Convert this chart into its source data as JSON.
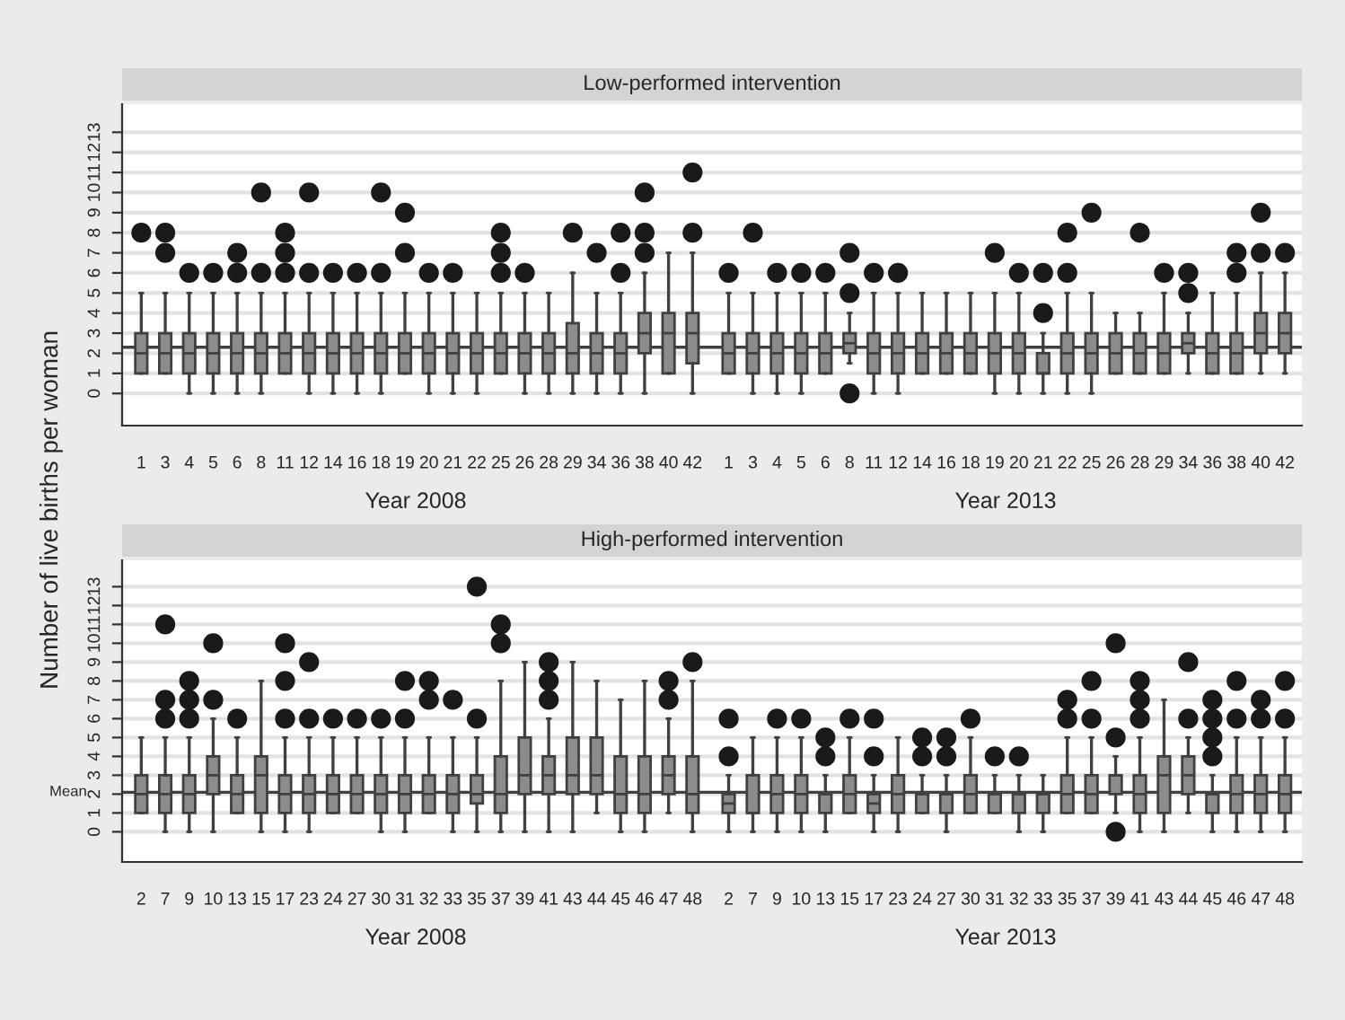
{
  "chart_data": [
    {
      "type": "box",
      "title": "Low-performed intervention",
      "ylabel": "Number of live births per woman",
      "xlabel": "Year 2008",
      "color": "#8c8c8c",
      "grid": "y",
      "ylim": [
        -1.6,
        14.4
      ],
      "yticks": [
        0,
        1,
        2,
        3,
        4,
        5,
        6,
        7,
        8,
        9,
        10,
        11,
        12,
        13
      ],
      "categories": [
        "1",
        "3",
        "4",
        "5",
        "6",
        "8",
        "11",
        "12",
        "14",
        "16",
        "18",
        "19",
        "20",
        "21",
        "22",
        "25",
        "26",
        "28",
        "29",
        "34",
        "36",
        "38",
        "40",
        "42"
      ],
      "ref_lines": [
        {
          "axis": "y",
          "value": 2.3,
          "color": "#404040"
        }
      ],
      "boxes": [
        {
          "low": 1,
          "q1": 1,
          "median": 2,
          "q3": 3,
          "high": 5,
          "outliers": [
            8
          ]
        },
        {
          "low": 1,
          "q1": 1,
          "median": 2,
          "q3": 3,
          "high": 5,
          "outliers": [
            7,
            8
          ]
        },
        {
          "low": 0,
          "q1": 1,
          "median": 2,
          "q3": 3,
          "high": 5,
          "outliers": [
            6
          ]
        },
        {
          "low": 0,
          "q1": 1,
          "median": 2,
          "q3": 3,
          "high": 5,
          "outliers": [
            6
          ]
        },
        {
          "low": 0,
          "q1": 1,
          "median": 2,
          "q3": 3,
          "high": 5,
          "outliers": [
            6,
            7
          ]
        },
        {
          "low": 0,
          "q1": 1,
          "median": 2,
          "q3": 3,
          "high": 5,
          "outliers": [
            6,
            10
          ]
        },
        {
          "low": 1,
          "q1": 1,
          "median": 2,
          "q3": 3,
          "high": 5,
          "outliers": [
            6,
            7,
            8
          ]
        },
        {
          "low": 0,
          "q1": 1,
          "median": 2,
          "q3": 3,
          "high": 5,
          "outliers": [
            6,
            10
          ]
        },
        {
          "low": 0,
          "q1": 1,
          "median": 2,
          "q3": 3,
          "high": 5,
          "outliers": [
            6
          ]
        },
        {
          "low": 0,
          "q1": 1,
          "median": 2,
          "q3": 3,
          "high": 5,
          "outliers": [
            6
          ]
        },
        {
          "low": 0,
          "q1": 1,
          "median": 2,
          "q3": 3,
          "high": 5,
          "outliers": [
            6,
            10
          ]
        },
        {
          "low": 1,
          "q1": 1,
          "median": 2,
          "q3": 3,
          "high": 5,
          "outliers": [
            7,
            9
          ]
        },
        {
          "low": 0,
          "q1": 1,
          "median": 2,
          "q3": 3,
          "high": 5,
          "outliers": [
            6
          ]
        },
        {
          "low": 0,
          "q1": 1,
          "median": 2,
          "q3": 3,
          "high": 5,
          "outliers": [
            6
          ]
        },
        {
          "low": 0,
          "q1": 1,
          "median": 2,
          "q3": 3,
          "high": 5
        },
        {
          "low": 1,
          "q1": 1,
          "median": 2,
          "q3": 3,
          "high": 5,
          "outliers": [
            6,
            7,
            8
          ]
        },
        {
          "low": 0,
          "q1": 1,
          "median": 2,
          "q3": 3,
          "high": 5,
          "outliers": [
            6
          ]
        },
        {
          "low": 0,
          "q1": 1,
          "median": 2,
          "q3": 3,
          "high": 5
        },
        {
          "low": 0,
          "q1": 1,
          "median": 2,
          "q3": 3.5,
          "high": 6,
          "outliers": [
            8
          ]
        },
        {
          "low": 0,
          "q1": 1,
          "median": 2,
          "q3": 3,
          "high": 5,
          "outliers": [
            7
          ]
        },
        {
          "low": 0,
          "q1": 1,
          "median": 2,
          "q3": 3,
          "high": 5,
          "outliers": [
            6,
            8
          ]
        },
        {
          "low": 0,
          "q1": 2,
          "median": 3,
          "q3": 4,
          "high": 6,
          "outliers": [
            7,
            8,
            10
          ]
        },
        {
          "low": 1,
          "q1": 1,
          "median": 3,
          "q3": 4,
          "high": 7
        },
        {
          "low": 0,
          "q1": 1.5,
          "median": 3,
          "q3": 4,
          "high": 7,
          "outliers": [
            8,
            11
          ]
        }
      ]
    },
    {
      "type": "box",
      "xlabel": "Year 2013",
      "color": "#8c8c8c",
      "grid": "y",
      "tick_labels": "x",
      "ylim": [
        -1.6,
        14.4
      ],
      "yticks": [
        0,
        1,
        2,
        3,
        4,
        5,
        6,
        7,
        8,
        9,
        10,
        11,
        12,
        13
      ],
      "categories": [
        "1",
        "3",
        "4",
        "5",
        "6",
        "8",
        "11",
        "12",
        "14",
        "16",
        "18",
        "19",
        "20",
        "21",
        "22",
        "25",
        "26",
        "28",
        "29",
        "34",
        "36",
        "38",
        "40",
        "42"
      ],
      "ref_lines": [
        {
          "axis": "y",
          "value": 2.3,
          "color": "#404040"
        }
      ],
      "boxes": [
        {
          "low": 1,
          "q1": 1,
          "median": 2,
          "q3": 3,
          "high": 5,
          "outliers": [
            6
          ]
        },
        {
          "low": 0,
          "q1": 1,
          "median": 2,
          "q3": 3,
          "high": 5,
          "outliers": [
            8
          ]
        },
        {
          "low": 0,
          "q1": 1,
          "median": 2,
          "q3": 3,
          "high": 5,
          "outliers": [
            6
          ]
        },
        {
          "low": 0,
          "q1": 1,
          "median": 2,
          "q3": 3,
          "high": 5,
          "outliers": [
            6
          ]
        },
        {
          "low": 1,
          "q1": 1,
          "median": 2,
          "q3": 3,
          "high": 5,
          "outliers": [
            6
          ]
        },
        {
          "low": 1.5,
          "q1": 2,
          "median": 2.5,
          "q3": 3,
          "high": 4,
          "outliers": [
            0,
            5,
            7
          ]
        },
        {
          "low": 0,
          "q1": 1,
          "median": 2,
          "q3": 3,
          "high": 5,
          "outliers": [
            6
          ]
        },
        {
          "low": 0,
          "q1": 1,
          "median": 2,
          "q3": 3,
          "high": 5,
          "outliers": [
            6
          ]
        },
        {
          "low": 1,
          "q1": 1,
          "median": 2,
          "q3": 3,
          "high": 5
        },
        {
          "low": 1,
          "q1": 1,
          "median": 2,
          "q3": 3,
          "high": 5
        },
        {
          "low": 1,
          "q1": 1,
          "median": 2,
          "q3": 3,
          "high": 5
        },
        {
          "low": 0,
          "q1": 1,
          "median": 2,
          "q3": 3,
          "high": 5,
          "outliers": [
            7
          ]
        },
        {
          "low": 0,
          "q1": 1,
          "median": 2,
          "q3": 3,
          "high": 5,
          "outliers": [
            6
          ]
        },
        {
          "low": 0,
          "q1": 1,
          "median": 1,
          "q3": 2,
          "high": 3,
          "outliers": [
            4,
            6
          ]
        },
        {
          "low": 0,
          "q1": 1,
          "median": 2,
          "q3": 3,
          "high": 5,
          "outliers": [
            6,
            8
          ]
        },
        {
          "low": 0,
          "q1": 1,
          "median": 2,
          "q3": 3,
          "high": 5,
          "outliers": [
            9
          ]
        },
        {
          "low": 1,
          "q1": 1,
          "median": 2,
          "q3": 3,
          "high": 4
        },
        {
          "low": 1,
          "q1": 1,
          "median": 2,
          "q3": 3,
          "high": 4,
          "outliers": [
            8
          ]
        },
        {
          "low": 1,
          "q1": 1,
          "median": 2,
          "q3": 3,
          "high": 5,
          "outliers": [
            6
          ]
        },
        {
          "low": 1,
          "q1": 2,
          "median": 2.5,
          "q3": 3,
          "high": 4,
          "outliers": [
            5,
            6
          ]
        },
        {
          "low": 1,
          "q1": 1,
          "median": 2,
          "q3": 3,
          "high": 5
        },
        {
          "low": 1,
          "q1": 1,
          "median": 2,
          "q3": 3,
          "high": 5,
          "outliers": [
            6,
            7
          ]
        },
        {
          "low": 1,
          "q1": 2,
          "median": 3,
          "q3": 4,
          "high": 6,
          "outliers": [
            7,
            9
          ]
        },
        {
          "low": 1,
          "q1": 2,
          "median": 3,
          "q3": 4,
          "high": 6,
          "outliers": [
            7
          ]
        }
      ]
    },
    {
      "type": "box",
      "title": "High-performed intervention",
      "xlabel": "Year 2008",
      "color": "#8c8c8c",
      "grid": "y",
      "ylim": [
        -1.6,
        14.4
      ],
      "yticks": [
        0,
        1,
        2,
        3,
        4,
        5,
        6,
        7,
        8,
        9,
        10,
        11,
        12,
        13
      ],
      "categories": [
        "2",
        "7",
        "9",
        "10",
        "13",
        "15",
        "17",
        "23",
        "24",
        "27",
        "30",
        "31",
        "32",
        "33",
        "35",
        "37",
        "39",
        "41",
        "43",
        "44",
        "45",
        "46",
        "47",
        "48"
      ],
      "ref_lines": [
        {
          "axis": "y",
          "value": 2.1,
          "label": "Mean",
          "color": "#404040"
        }
      ],
      "boxes": [
        {
          "low": 1,
          "q1": 1,
          "median": 2,
          "q3": 3,
          "high": 5
        },
        {
          "low": 0,
          "q1": 1,
          "median": 2,
          "q3": 3,
          "high": 5,
          "outliers": [
            6,
            7,
            11
          ]
        },
        {
          "low": 0,
          "q1": 1,
          "median": 2,
          "q3": 3,
          "high": 5,
          "outliers": [
            6,
            7,
            8
          ]
        },
        {
          "low": 0,
          "q1": 2,
          "median": 3,
          "q3": 4,
          "high": 6,
          "outliers": [
            7,
            10
          ]
        },
        {
          "low": 1,
          "q1": 1,
          "median": 2,
          "q3": 3,
          "high": 5,
          "outliers": [
            6
          ]
        },
        {
          "low": 0,
          "q1": 1,
          "median": 3,
          "q3": 4,
          "high": 8
        },
        {
          "low": 0,
          "q1": 1,
          "median": 2,
          "q3": 3,
          "high": 5,
          "outliers": [
            6,
            8,
            10
          ]
        },
        {
          "low": 0,
          "q1": 1,
          "median": 2,
          "q3": 3,
          "high": 5,
          "outliers": [
            6,
            9
          ]
        },
        {
          "low": 1,
          "q1": 1,
          "median": 2,
          "q3": 3,
          "high": 5,
          "outliers": [
            6
          ]
        },
        {
          "low": 1,
          "q1": 1,
          "median": 2,
          "q3": 3,
          "high": 5,
          "outliers": [
            6
          ]
        },
        {
          "low": 0,
          "q1": 1,
          "median": 2,
          "q3": 3,
          "high": 5,
          "outliers": [
            6
          ]
        },
        {
          "low": 0,
          "q1": 1,
          "median": 2,
          "q3": 3,
          "high": 5,
          "outliers": [
            6,
            8
          ]
        },
        {
          "low": 1,
          "q1": 1,
          "median": 2,
          "q3": 3,
          "high": 5,
          "outliers": [
            7,
            8
          ]
        },
        {
          "low": 0,
          "q1": 1,
          "median": 2,
          "q3": 3,
          "high": 5,
          "outliers": [
            7
          ]
        },
        {
          "low": 0,
          "q1": 1.5,
          "median": 2,
          "q3": 3,
          "high": 5,
          "outliers": [
            6,
            13
          ]
        },
        {
          "low": 0,
          "q1": 1,
          "median": 2,
          "q3": 4,
          "high": 8,
          "outliers": [
            10,
            11
          ]
        },
        {
          "low": 0,
          "q1": 2,
          "median": 3,
          "q3": 5,
          "high": 9
        },
        {
          "low": 0,
          "q1": 2,
          "median": 3,
          "q3": 4,
          "high": 6,
          "outliers": [
            7,
            8,
            9
          ]
        },
        {
          "low": 0,
          "q1": 2,
          "median": 3,
          "q3": 5,
          "high": 9
        },
        {
          "low": 1,
          "q1": 2,
          "median": 3,
          "q3": 5,
          "high": 8
        },
        {
          "low": 0,
          "q1": 1,
          "median": 2,
          "q3": 4,
          "high": 7
        },
        {
          "low": 0,
          "q1": 1,
          "median": 2,
          "q3": 4,
          "high": 8
        },
        {
          "low": 1,
          "q1": 2,
          "median": 3,
          "q3": 4,
          "high": 6,
          "outliers": [
            7,
            8
          ]
        },
        {
          "low": 0,
          "q1": 1,
          "median": 2,
          "q3": 4,
          "high": 8,
          "outliers": [
            9
          ]
        }
      ]
    },
    {
      "type": "box",
      "xlabel": "Year 2013",
      "color": "#8c8c8c",
      "grid": "y",
      "tick_labels": "x",
      "ylim": [
        -1.6,
        14.4
      ],
      "yticks": [
        0,
        1,
        2,
        3,
        4,
        5,
        6,
        7,
        8,
        9,
        10,
        11,
        12,
        13
      ],
      "categories": [
        "2",
        "7",
        "9",
        "10",
        "13",
        "15",
        "17",
        "23",
        "24",
        "27",
        "30",
        "31",
        "32",
        "33",
        "35",
        "37",
        "39",
        "41",
        "43",
        "44",
        "45",
        "46",
        "47",
        "48"
      ],
      "ref_lines": [
        {
          "axis": "y",
          "value": 2.1,
          "color": "#404040"
        }
      ],
      "boxes": [
        {
          "low": 0,
          "q1": 1,
          "median": 1.5,
          "q3": 2,
          "high": 3,
          "outliers": [
            4,
            6
          ]
        },
        {
          "low": 0,
          "q1": 1,
          "median": 1,
          "q3": 3,
          "high": 5
        },
        {
          "low": 0,
          "q1": 1,
          "median": 2,
          "q3": 3,
          "high": 5,
          "outliers": [
            6
          ]
        },
        {
          "low": 0,
          "q1": 1,
          "median": 2,
          "q3": 3,
          "high": 5,
          "outliers": [
            6
          ]
        },
        {
          "low": 0,
          "q1": 1,
          "median": 2,
          "q3": 2,
          "high": 3,
          "outliers": [
            4,
            5
          ]
        },
        {
          "low": 1,
          "q1": 1,
          "median": 2,
          "q3": 3,
          "high": 5,
          "outliers": [
            6
          ]
        },
        {
          "low": 0,
          "q1": 1,
          "median": 1.5,
          "q3": 2,
          "high": 3,
          "outliers": [
            4,
            6
          ]
        },
        {
          "low": 0,
          "q1": 1,
          "median": 2,
          "q3": 3,
          "high": 5
        },
        {
          "low": 1,
          "q1": 1,
          "median": 2,
          "q3": 2,
          "high": 3,
          "outliers": [
            4,
            5
          ]
        },
        {
          "low": 0,
          "q1": 1,
          "median": 2,
          "q3": 2,
          "high": 3,
          "outliers": [
            4,
            5
          ]
        },
        {
          "low": 1,
          "q1": 1,
          "median": 2,
          "q3": 3,
          "high": 5,
          "outliers": [
            6
          ]
        },
        {
          "low": 1,
          "q1": 1,
          "median": 2,
          "q3": 2,
          "high": 3,
          "outliers": [
            4
          ]
        },
        {
          "low": 0,
          "q1": 1,
          "median": 2,
          "q3": 2,
          "high": 3,
          "outliers": [
            4
          ]
        },
        {
          "low": 0,
          "q1": 1,
          "median": 2,
          "q3": 2,
          "high": 3
        },
        {
          "low": 1,
          "q1": 1,
          "median": 2,
          "q3": 3,
          "high": 5,
          "outliers": [
            6,
            7
          ]
        },
        {
          "low": 1,
          "q1": 1,
          "median": 2,
          "q3": 3,
          "high": 5,
          "outliers": [
            6,
            8
          ]
        },
        {
          "low": 1,
          "q1": 2,
          "median": 3,
          "q3": 3,
          "high": 4,
          "outliers": [
            0,
            5,
            10
          ]
        },
        {
          "low": 0,
          "q1": 1,
          "median": 2,
          "q3": 3,
          "high": 5,
          "outliers": [
            6,
            7,
            8
          ]
        },
        {
          "low": 0,
          "q1": 1,
          "median": 3,
          "q3": 4,
          "high": 7
        },
        {
          "low": 1,
          "q1": 2,
          "median": 3,
          "q3": 4,
          "high": 5,
          "outliers": [
            6,
            9
          ]
        },
        {
          "low": 0,
          "q1": 1,
          "median": 2,
          "q3": 2,
          "high": 3,
          "outliers": [
            4,
            5,
            6,
            7
          ]
        },
        {
          "low": 0,
          "q1": 1,
          "median": 2,
          "q3": 3,
          "high": 5,
          "outliers": [
            6,
            8
          ]
        },
        {
          "low": 0,
          "q1": 1,
          "median": 2,
          "q3": 3,
          "high": 5,
          "outliers": [
            6,
            7
          ]
        },
        {
          "low": 0,
          "q1": 1,
          "median": 2,
          "q3": 3,
          "high": 5,
          "outliers": [
            6,
            8
          ]
        }
      ]
    }
  ]
}
